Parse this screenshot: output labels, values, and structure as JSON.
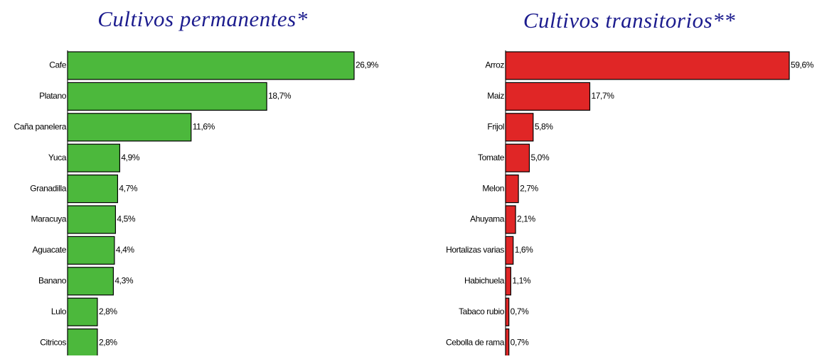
{
  "chart_data": [
    {
      "type": "bar",
      "orientation": "horizontal",
      "title": "Cultivos permanentes*",
      "color": "#4cb83c",
      "categories": [
        "Cafe",
        "Platano",
        "Caña panelera",
        "Yuca",
        "Granadilla",
        "Maracuya",
        "Aguacate",
        "Banano",
        "Lulo",
        "Citricos"
      ],
      "values": [
        26.9,
        18.7,
        11.6,
        4.9,
        4.7,
        4.5,
        4.4,
        4.3,
        2.8,
        2.8
      ],
      "value_labels": [
        "26,9%",
        "18,7%",
        "11,6%",
        "4,9%",
        "4,7%",
        "4,5%",
        "4,4%",
        "4,3%",
        "2,8%",
        "2,8%"
      ]
    },
    {
      "type": "bar",
      "orientation": "horizontal",
      "title": "Cultivos transitorios**",
      "color": "#e02626",
      "categories": [
        "Arroz",
        "Maiz",
        "Frijol",
        "Tomate",
        "Melon",
        "Ahuyama",
        "Hortalizas varias",
        "Habichuela",
        "Tabaco rubio",
        "Cebolla de rama"
      ],
      "values": [
        59.6,
        17.7,
        5.8,
        5.0,
        2.7,
        2.1,
        1.6,
        1.1,
        0.7,
        0.7
      ],
      "value_labels": [
        "59,6%",
        "17,7%",
        "5,8%",
        "5,0%",
        "2,7%",
        "2,1%",
        "1,6%",
        "1,1%",
        "0,7%",
        "0,7%"
      ]
    }
  ]
}
